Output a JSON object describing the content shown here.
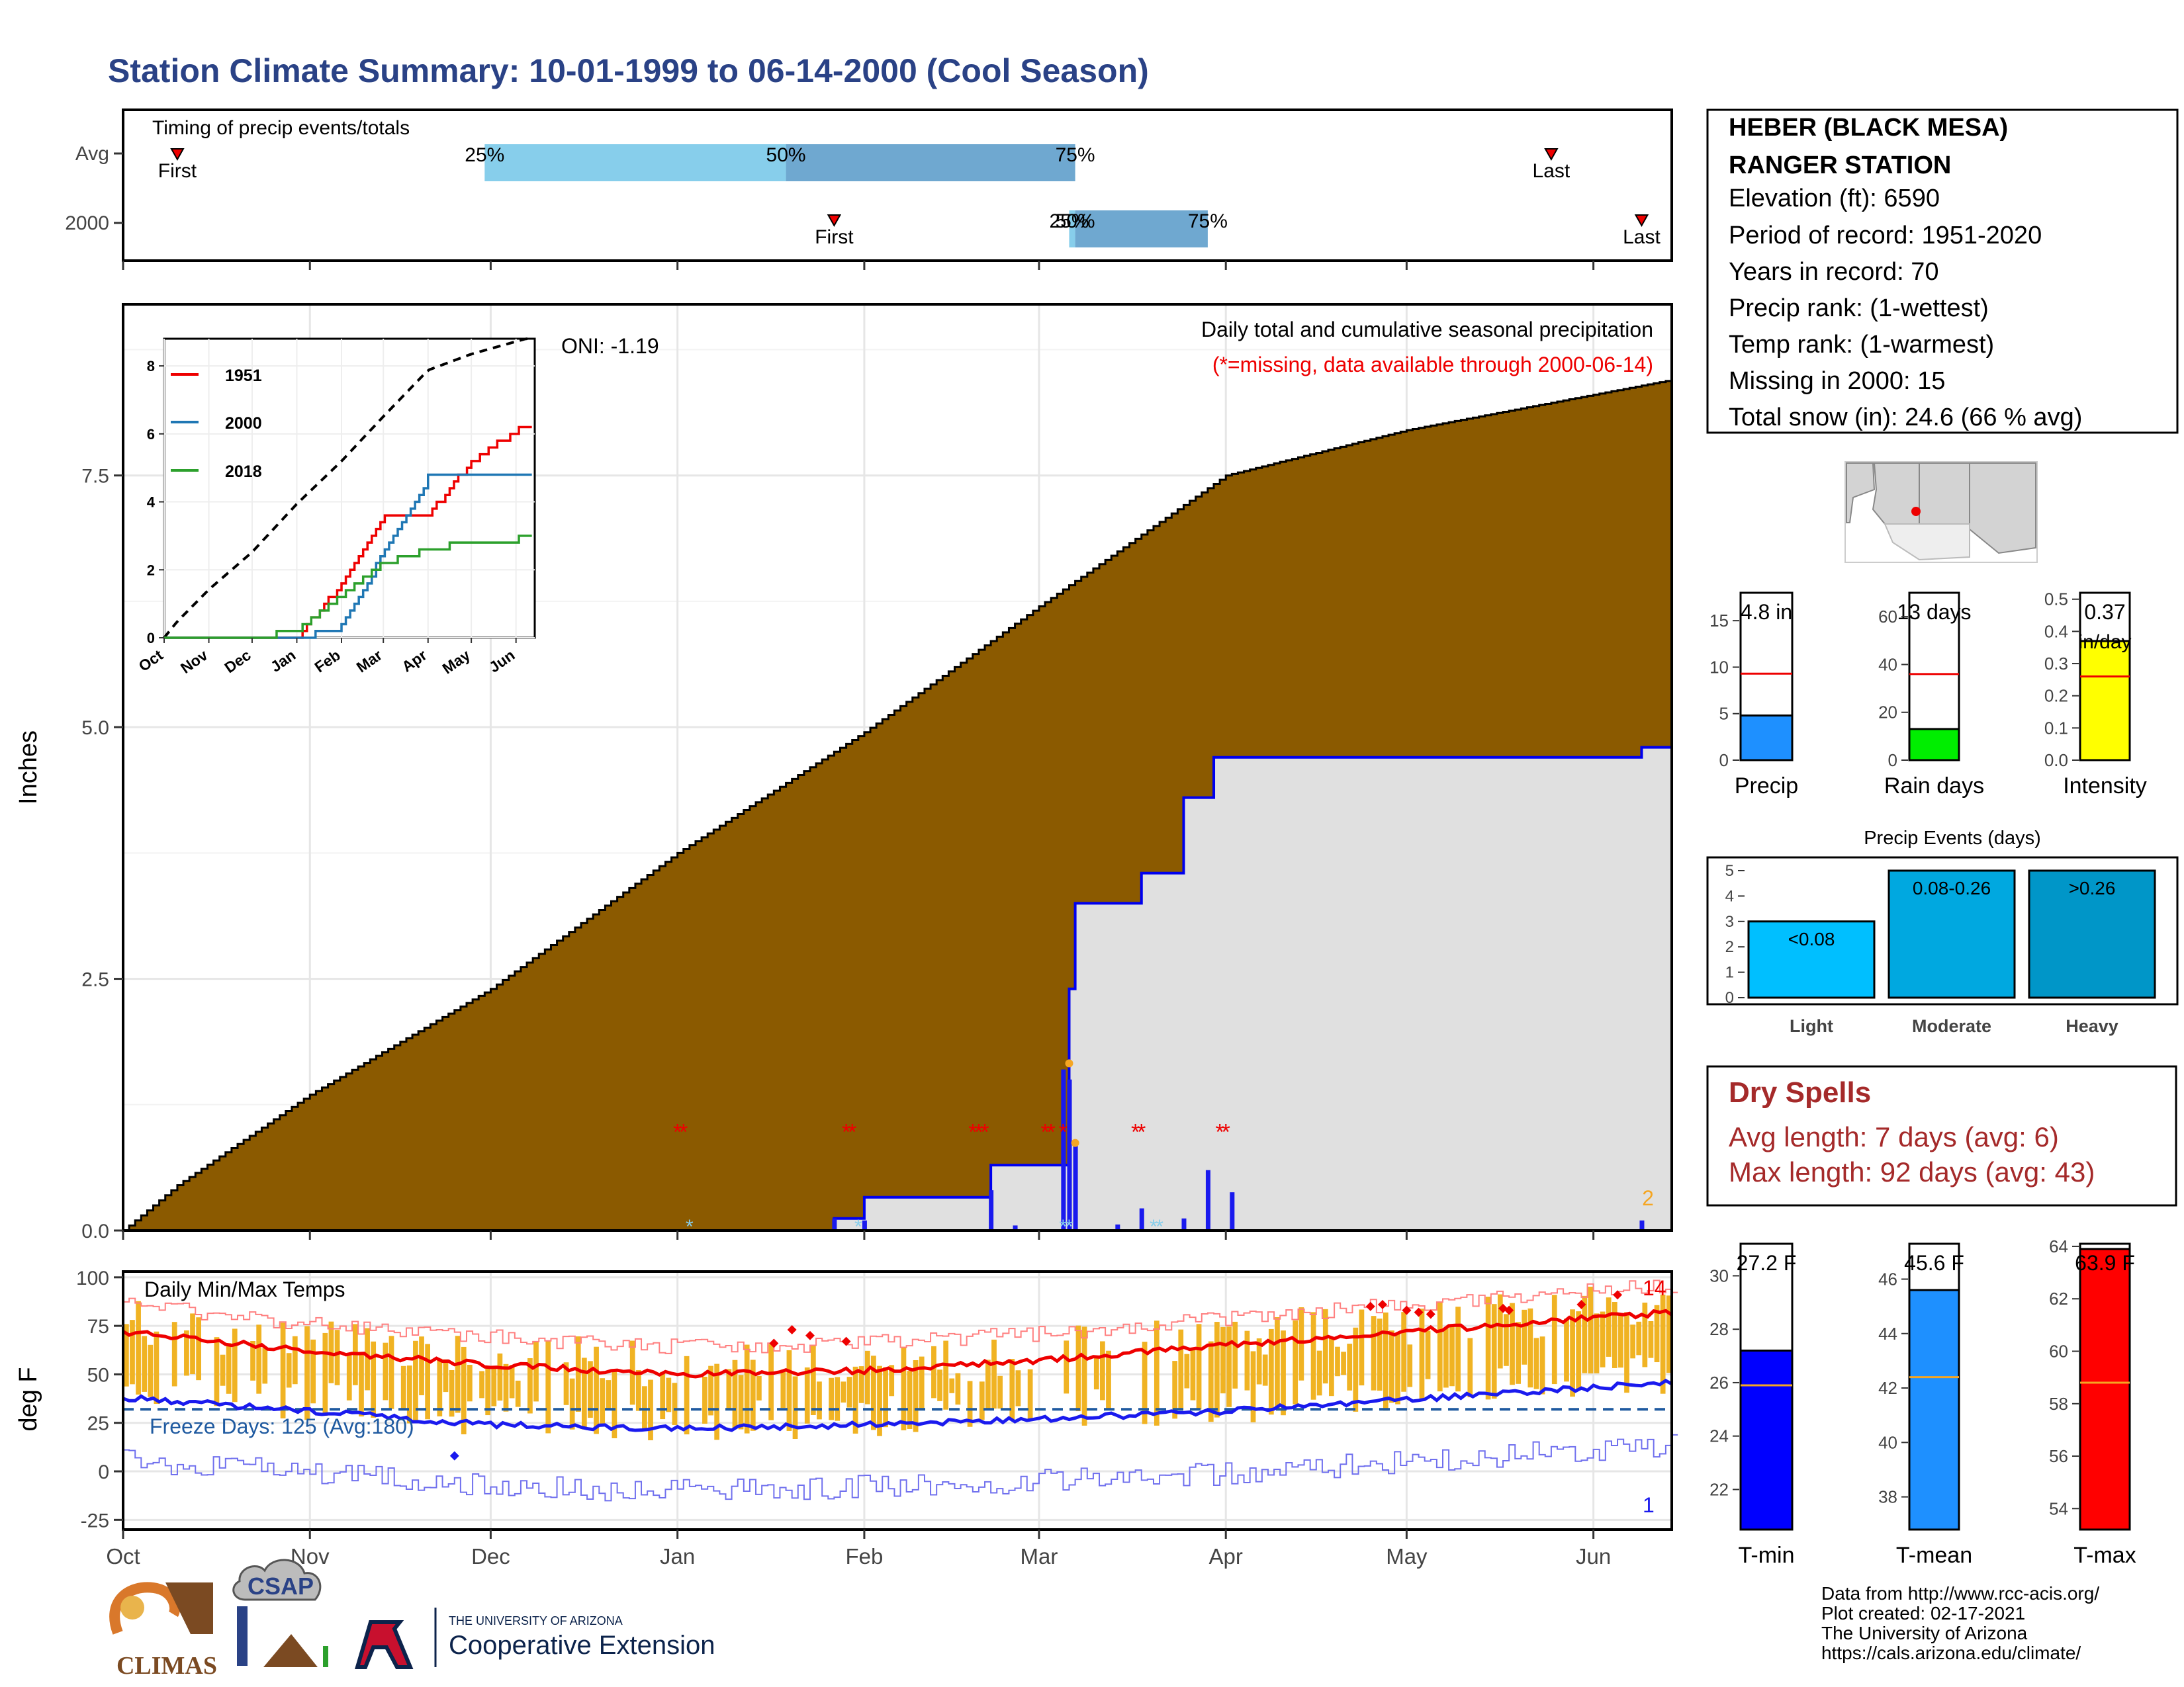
{
  "header": {
    "title": "Station Climate Summary: 10-01-1999 to 06-14-2000 (Cool Season)"
  },
  "colors": {
    "title": "#2a4286",
    "cumulative_avg_fill": "#8b5a00",
    "cumulative_2000_fill": "#e0e0e0",
    "cumulative_2000_line": "#0000ee",
    "daily_bars": "#1a1aee",
    "temp_range_bars": "#f0b323",
    "tmax_line": "#ee0000",
    "tmin_line": "#1a1aee",
    "missing_marker": "#ee0000",
    "snow_marker": "#87ceeb",
    "dry_spell_text": "#a52a2a"
  },
  "timing_panel": {
    "label": "Timing of precip events/totals",
    "rows": [
      {
        "name": "Avg",
        "first_label": "First",
        "last_label": "Last",
        "first_date": "1999-10-10",
        "last_date": "2000-05-25",
        "q25": "1999-11-30",
        "q50": "2000-01-19",
        "q75": "2000-03-07",
        "q25_label": "25%",
        "q50_label": "50%",
        "q75_label": "75%"
      },
      {
        "name": "2000",
        "first_label": "First",
        "last_label": "Last",
        "first_date": "2000-01-27",
        "last_date": "2000-06-09",
        "q25": "2000-03-06",
        "q50": "2000-03-07",
        "q75": "2000-03-29",
        "q25_label": "25%",
        "q50_label": "50%",
        "q75_label": "75%"
      }
    ]
  },
  "precip_panel": {
    "annotation": "Daily total and cumulative seasonal precipitation",
    "missing_note": "(*=missing, data available through 2000-06-14)",
    "oni": "ONI: -1.19",
    "ylabel": "Inches",
    "yticks": [
      "0.0",
      "2.5",
      "5.0",
      "7.5"
    ],
    "corner_count": "2"
  },
  "inset": {
    "legend": [
      "1951",
      "2000",
      "2018"
    ],
    "legend_colors": [
      "#ee0000",
      "#1f77b4",
      "#2ca02c"
    ],
    "yticks": [
      "0",
      "2",
      "4",
      "6",
      "8"
    ],
    "xticks": [
      "Oct",
      "Nov",
      "Dec",
      "Jan",
      "Feb",
      "Mar",
      "Apr",
      "May",
      "Jun"
    ]
  },
  "temp_panel": {
    "label": "Daily Min/Max Temps",
    "freeze_label": "Freeze Days: 125 (Avg:180)",
    "ylabel": "deg F",
    "yticks": [
      "-25",
      "0",
      "25",
      "50",
      "75",
      "100"
    ],
    "count_high": "14",
    "count_low": "1"
  },
  "xaxis": {
    "months": [
      "Oct",
      "Nov",
      "Dec",
      "Jan",
      "Feb",
      "Mar",
      "Apr",
      "May",
      "Jun"
    ]
  },
  "station": {
    "name_line1": "HEBER (BLACK MESA)",
    "name_line2": "RANGER STATION",
    "elevation": "Elevation (ft): 6590",
    "period": "Period of record: 1951-2020",
    "years": "Years in record: 70",
    "precip_rank": "Precip rank:  (1-wettest)",
    "temp_rank": "Temp rank:  (1-warmest)",
    "missing": "Missing in 2000: 15",
    "snow": "Total snow (in): 24.6 (66 % avg)"
  },
  "summary_bars": {
    "precip": {
      "label": "Precip",
      "value": 4.8,
      "value_label": "4.8 in",
      "avg": 9.3,
      "ymax": 18,
      "yticks": [
        "0",
        "5",
        "10",
        "15"
      ],
      "color": "#1e90ff"
    },
    "rain_days": {
      "label": "Rain days",
      "value": 13,
      "value_label": "13 days",
      "avg": 36,
      "ymax": 70,
      "yticks": [
        "0",
        "20",
        "40",
        "60"
      ],
      "color": "#00ee00"
    },
    "intensity": {
      "label": "Intensity",
      "value": 0.37,
      "value_label": "0.37",
      "unit_label": "in/day",
      "avg": 0.26,
      "ymax": 0.52,
      "yticks": [
        "0.0",
        "0.1",
        "0.2",
        "0.3",
        "0.4",
        "0.5"
      ],
      "color": "#ffff00"
    }
  },
  "precip_events": {
    "title": "Precip Events (days)",
    "yticks": [
      "0",
      "1",
      "2",
      "3",
      "4",
      "5"
    ],
    "bars": [
      {
        "name": "Light",
        "range": "<0.08",
        "value": 3,
        "color": "#00bfff"
      },
      {
        "name": "Moderate",
        "range": "0.08-0.26",
        "value": 5,
        "color": "#00a8e0"
      },
      {
        "name": "Heavy",
        "range": ">0.26",
        "value": 5,
        "color": "#0096c8"
      }
    ]
  },
  "dry_spells": {
    "title": "Dry Spells",
    "avg": "Avg length: 7 days (avg: 6)",
    "max": "Max length: 92 days (avg: 43)"
  },
  "temp_bars": {
    "tmin": {
      "label": "T-min",
      "value": 27.2,
      "value_label": "27.2 F",
      "avg": 25.9,
      "ymin": 20.5,
      "ymax": 31.2,
      "yticks": [
        "22",
        "24",
        "26",
        "28",
        "30"
      ],
      "color": "#0000ff"
    },
    "tmean": {
      "label": "T-mean",
      "value": 45.6,
      "value_label": "45.6 F",
      "avg": 42.4,
      "ymin": 36.8,
      "ymax": 47.3,
      "yticks": [
        "38",
        "40",
        "42",
        "44",
        "46"
      ],
      "color": "#1e90ff"
    },
    "tmax": {
      "label": "T-max",
      "value": 63.9,
      "value_label": "63.9 F",
      "avg": 58.8,
      "ymin": 53.2,
      "ymax": 64.1,
      "yticks": [
        "54",
        "56",
        "58",
        "60",
        "62",
        "64"
      ],
      "color": "#ff0000"
    }
  },
  "footer": {
    "logos": [
      "CLIMAS",
      "CSAP"
    ],
    "ua_small": "THE UNIVERSITY OF ARIZONA",
    "ua_big": "Cooperative Extension",
    "credit1": "Data from http://www.rcc-acis.org/",
    "credit2": "Plot created: 02-17-2021",
    "credit3": "The University of Arizona",
    "credit4": "https://cals.arizona.edu/climate/"
  },
  "chart_data": [
    {
      "type": "area",
      "title": "Daily total and cumulative seasonal precipitation",
      "ylabel": "Inches",
      "ylim": [
        0,
        9.2
      ],
      "series": [
        {
          "name": "Avg",
          "x": [
            "1999-10-01",
            "1999-10-10",
            "1999-11-01",
            "1999-12-01",
            "2000-01-01",
            "2000-02-01",
            "2000-03-01",
            "2000-04-01",
            "2000-05-01",
            "2000-06-14"
          ],
          "values": [
            0.0,
            0.45,
            1.35,
            2.4,
            3.75,
            4.95,
            6.2,
            7.5,
            7.95,
            8.45
          ]
        },
        {
          "name": "2000",
          "x": [
            "1999-10-01",
            "2000-01-27",
            "2000-02-01",
            "2000-02-22",
            "2000-03-06",
            "2000-03-07",
            "2000-03-18",
            "2000-03-25",
            "2000-03-30",
            "2000-06-09"
          ],
          "values": [
            0.0,
            0.12,
            0.33,
            0.65,
            2.4,
            3.25,
            3.55,
            4.3,
            4.7,
            4.8
          ]
        }
      ]
    },
    {
      "type": "line",
      "title": "Daily Min/Max Temps",
      "ylabel": "deg F",
      "ylim": [
        -30,
        100
      ],
      "series": [
        {
          "name": "avg max",
          "x": [
            "1999-10-01",
            "1999-11-01",
            "1999-12-01",
            "2000-01-01",
            "2000-02-01",
            "2000-03-01",
            "2000-04-01",
            "2000-05-01",
            "2000-06-14"
          ],
          "values": [
            72,
            62,
            55,
            50,
            52,
            57,
            65,
            72,
            82
          ]
        },
        {
          "name": "avg min",
          "x": [
            "1999-10-01",
            "1999-11-01",
            "1999-12-01",
            "2000-01-01",
            "2000-02-01",
            "2000-03-01",
            "2000-04-01",
            "2000-05-01",
            "2000-06-14"
          ],
          "values": [
            38,
            31,
            24,
            22,
            24,
            27,
            31,
            37,
            46
          ]
        }
      ]
    },
    {
      "type": "line",
      "title": "",
      "x": [
        "Oct",
        "Nov",
        "Dec",
        "Jan",
        "Feb",
        "Mar",
        "Apr",
        "May",
        "Jun"
      ],
      "ylim": [
        0,
        9
      ],
      "series": [
        {
          "name": "1951",
          "values": [
            0,
            0,
            0,
            0,
            1.6,
            3.6,
            3.6,
            5.2,
            6.1
          ]
        },
        {
          "name": "2000",
          "values": [
            0,
            0,
            0,
            0,
            0.3,
            2.5,
            4.7,
            4.7,
            4.8
          ]
        },
        {
          "name": "2018",
          "values": [
            0,
            0,
            0,
            0.2,
            1.2,
            2.2,
            2.6,
            2.8,
            2.9
          ]
        }
      ]
    }
  ]
}
